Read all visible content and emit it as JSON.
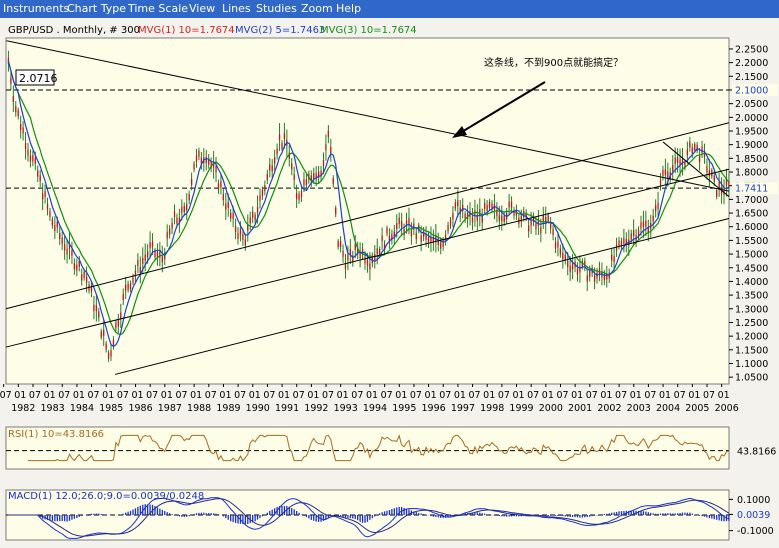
{
  "menu": [
    "Instruments",
    "Chart Type",
    "Time Scale",
    "View",
    "Lines",
    "Studies",
    "Zoom",
    "Help"
  ],
  "colors": {
    "menubar": "#2f68c9",
    "panel_bg": "#fdfde8",
    "candle": "#2a7a2a",
    "mvg1": "#d82020",
    "mvg2": "#2040d0",
    "mvg3": "#109010",
    "rsi": "#a86a20",
    "macd": "#1830d0",
    "trend": "#000000"
  },
  "price_header": {
    "symbol": "GBP/USD . Monthly, # 300",
    "mvg1": "MVG(1) 10=1.7674",
    "mvg2": "MVG(2) 5=1.7463",
    "mvg3": "MVG(3) 10=1.7674"
  },
  "annotation": "这条线，不到900点就能搞定？",
  "price_marker": "2.0716",
  "rsi_header": "RSI(1) 10=43.8166",
  "macd_header": "MACD(1) 12.0;26.0;9.0=0.0039/0.0248",
  "chart_data": {
    "type": "line",
    "ylim": [
      1.025,
      2.29
    ],
    "yticks": [
      "2.2500",
      "2.2000",
      "2.1500",
      "2.1000",
      "2.0500",
      "2.0000",
      "1.9500",
      "1.9000",
      "1.8500",
      "1.8000",
      "1.7500",
      "1.7000",
      "1.6500",
      "1.6000",
      "1.5500",
      "1.5000",
      "1.4500",
      "1.4000",
      "1.3500",
      "1.3000",
      "1.2500",
      "1.2000",
      "1.1500",
      "1.1000",
      "1.0500"
    ],
    "highlighted_levels": [
      {
        "label": "2.1000",
        "value": 2.1
      },
      {
        "label": "1.7411",
        "value": 1.7411
      }
    ],
    "x_month_labels": [
      "07",
      "01",
      "07",
      "01",
      "07",
      "01",
      "07",
      "01",
      "07",
      "01",
      "07",
      "01",
      "07",
      "01",
      "07",
      "01",
      "07",
      "01",
      "07",
      "01",
      "07",
      "01",
      "07",
      "01",
      "07",
      "01",
      "07",
      "01",
      "07",
      "01",
      "07",
      "01",
      "07",
      "01",
      "07",
      "01",
      "07",
      "01",
      "07",
      "01",
      "07",
      "01",
      "07",
      "01",
      "07",
      "01",
      "07",
      "01",
      "07",
      "01"
    ],
    "x_year_labels": [
      "1982",
      "1983",
      "1984",
      "1985",
      "1986",
      "1987",
      "1988",
      "1989",
      "1990",
      "1991",
      "1992",
      "1993",
      "1994",
      "1995",
      "1996",
      "1997",
      "1998",
      "1999",
      "2000",
      "2001",
      "2002",
      "2003",
      "2004",
      "2005",
      "2006"
    ],
    "x_start_year": 1981.58,
    "x_end_year": 2006.25,
    "close_path": [
      [
        1981.6,
        2.25
      ],
      [
        1981.9,
        2.04
      ],
      [
        1982.3,
        1.9
      ],
      [
        1982.7,
        1.78
      ],
      [
        1983.1,
        1.63
      ],
      [
        1983.5,
        1.55
      ],
      [
        1983.9,
        1.48
      ],
      [
        1984.3,
        1.42
      ],
      [
        1984.7,
        1.28
      ],
      [
        1985.1,
        1.12
      ],
      [
        1985.3,
        1.22
      ],
      [
        1985.7,
        1.38
      ],
      [
        1986.1,
        1.45
      ],
      [
        1986.5,
        1.52
      ],
      [
        1986.9,
        1.48
      ],
      [
        1987.3,
        1.62
      ],
      [
        1987.7,
        1.65
      ],
      [
        1988.0,
        1.83
      ],
      [
        1988.4,
        1.87
      ],
      [
        1988.9,
        1.75
      ],
      [
        1989.3,
        1.62
      ],
      [
        1989.7,
        1.55
      ],
      [
        1990.1,
        1.65
      ],
      [
        1990.5,
        1.78
      ],
      [
        1990.9,
        1.92
      ],
      [
        1991.2,
        1.9
      ],
      [
        1991.5,
        1.7
      ],
      [
        1991.9,
        1.8
      ],
      [
        1992.3,
        1.78
      ],
      [
        1992.6,
        1.95
      ],
      [
        1992.9,
        1.55
      ],
      [
        1993.2,
        1.47
      ],
      [
        1993.6,
        1.52
      ],
      [
        1994.0,
        1.48
      ],
      [
        1994.5,
        1.55
      ],
      [
        1994.9,
        1.6
      ],
      [
        1995.3,
        1.6
      ],
      [
        1995.7,
        1.57
      ],
      [
        1996.1,
        1.54
      ],
      [
        1996.5,
        1.55
      ],
      [
        1996.9,
        1.68
      ],
      [
        1997.3,
        1.63
      ],
      [
        1997.7,
        1.64
      ],
      [
        1998.1,
        1.66
      ],
      [
        1998.5,
        1.65
      ],
      [
        1998.9,
        1.67
      ],
      [
        1999.3,
        1.62
      ],
      [
        1999.7,
        1.6
      ],
      [
        2000.1,
        1.62
      ],
      [
        2000.5,
        1.5
      ],
      [
        2000.9,
        1.46
      ],
      [
        2001.3,
        1.44
      ],
      [
        2001.7,
        1.42
      ],
      [
        2002.1,
        1.43
      ],
      [
        2002.5,
        1.52
      ],
      [
        2002.9,
        1.57
      ],
      [
        2003.3,
        1.6
      ],
      [
        2003.7,
        1.62
      ],
      [
        2004.0,
        1.8
      ],
      [
        2004.4,
        1.82
      ],
      [
        2004.8,
        1.85
      ],
      [
        2005.0,
        1.9
      ],
      [
        2005.4,
        1.85
      ],
      [
        2005.8,
        1.74
      ],
      [
        2006.2,
        1.74
      ]
    ],
    "trendlines": [
      {
        "from": [
          1981.6,
          2.28
        ],
        "to": [
          2006.25,
          1.73
        ]
      },
      {
        "from": [
          1981.58,
          1.3
        ],
        "to": [
          2006.25,
          1.98
        ]
      },
      {
        "from": [
          1981.58,
          1.16
        ],
        "to": [
          2006.25,
          1.81
        ]
      },
      {
        "from": [
          1985.3,
          1.06
        ],
        "to": [
          2006.25,
          1.63
        ]
      },
      {
        "from": [
          2004.0,
          1.91
        ],
        "to": [
          2006.25,
          1.71
        ]
      }
    ],
    "rsi": {
      "value": 43.8166,
      "label": "43.8166",
      "ylim": [
        0,
        100
      ]
    },
    "macd": {
      "ticks": [
        "0.1000",
        "0.0039",
        "-0.1000"
      ],
      "ylim": [
        -0.16,
        0.16
      ],
      "value": 0.0039,
      "signal": 0.0248
    }
  }
}
